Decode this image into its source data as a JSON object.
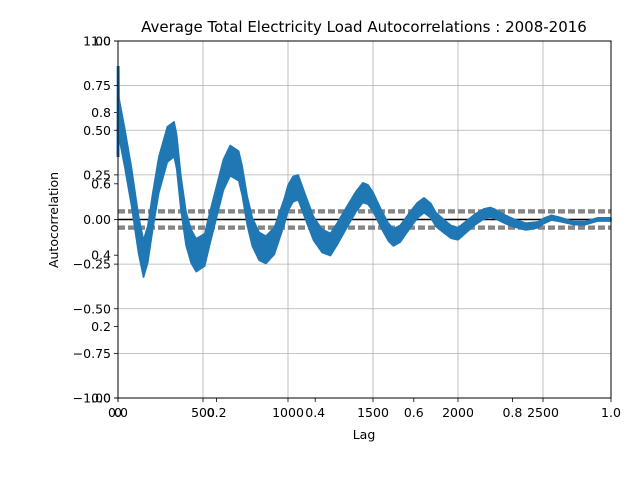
{
  "chart_data": {
    "type": "line",
    "title": "Average Total Electricity Load Autocorrelations : 2008-2016",
    "xlabel": "Lag",
    "ylabel": "Autocorrelation",
    "xlim": [
      0,
      2900
    ],
    "ylim": [
      -1.0,
      1.0
    ],
    "grid": true,
    "xticks": [
      0,
      500,
      1000,
      1500,
      2000,
      2500
    ],
    "xtick_labels": [
      "0",
      "500",
      "1000",
      "1500",
      "2000",
      "2500"
    ],
    "yticks": [
      -1.0,
      -0.75,
      -0.5,
      -0.25,
      0.0,
      0.25,
      0.5,
      0.75,
      1.0
    ],
    "ytick_labels": [
      "−1.00",
      "−0.75",
      "−0.50",
      "−0.25",
      "0.00",
      "0.25",
      "0.50",
      "0.75",
      "1.00"
    ],
    "overlay_axis": {
      "xticks": [
        0.0,
        0.2,
        0.4,
        0.6,
        0.8,
        1.0
      ],
      "xtick_labels": [
        "0.0",
        "0.2",
        "0.4",
        "0.6",
        "0.8",
        "1.0"
      ],
      "yticks": [
        0.0,
        0.2,
        0.4,
        0.6,
        0.8,
        1.0
      ],
      "ytick_labels": [
        "0.0",
        "0.2",
        "0.4",
        "0.6",
        "0.8",
        "1.0"
      ]
    },
    "reference_lines": {
      "zero": 0.0,
      "confidence_95": [
        0.038,
        -0.038
      ],
      "confidence_99": [
        0.05,
        -0.05
      ]
    },
    "series": [
      {
        "color": "#1f77b4",
        "daily_swing": 0.11,
        "envelope_x": [
          0,
          10,
          40,
          80,
          120,
          150,
          175,
          205,
          240,
          290,
          330,
          345,
          370,
          400,
          430,
          460,
          510,
          540,
          580,
          620,
          660,
          710,
          730,
          760,
          790,
          830,
          870,
          920,
          980,
          1000,
          1030,
          1060,
          1110,
          1150,
          1200,
          1250,
          1290,
          1350,
          1400,
          1440,
          1470,
          1500,
          1550,
          1590,
          1620,
          1660,
          1720,
          1760,
          1800,
          1840,
          1870,
          1920,
          1960,
          2000,
          2050,
          2100,
          2150,
          2190,
          2220,
          2280,
          2330,
          2400,
          2470,
          2500,
          2550,
          2600,
          2680,
          2750,
          2820,
          2900
        ],
        "envelope_mid": [
          0.6,
          0.55,
          0.4,
          0.18,
          -0.08,
          -0.22,
          -0.14,
          0.05,
          0.25,
          0.42,
          0.45,
          0.38,
          0.15,
          -0.05,
          -0.15,
          -0.2,
          -0.17,
          -0.05,
          0.1,
          0.25,
          0.33,
          0.3,
          0.22,
          0.05,
          -0.07,
          -0.15,
          -0.17,
          -0.12,
          0.05,
          0.12,
          0.17,
          0.18,
          0.05,
          -0.05,
          -0.12,
          -0.14,
          -0.08,
          0.02,
          0.1,
          0.15,
          0.14,
          0.1,
          0.0,
          -0.07,
          -0.1,
          -0.08,
          0.0,
          0.05,
          0.08,
          0.05,
          0.0,
          -0.04,
          -0.07,
          -0.08,
          -0.04,
          0.0,
          0.03,
          0.04,
          0.03,
          0.0,
          -0.02,
          -0.04,
          -0.03,
          -0.01,
          0.01,
          0.0,
          -0.02,
          -0.02,
          0.0,
          0.0
        ]
      }
    ]
  }
}
